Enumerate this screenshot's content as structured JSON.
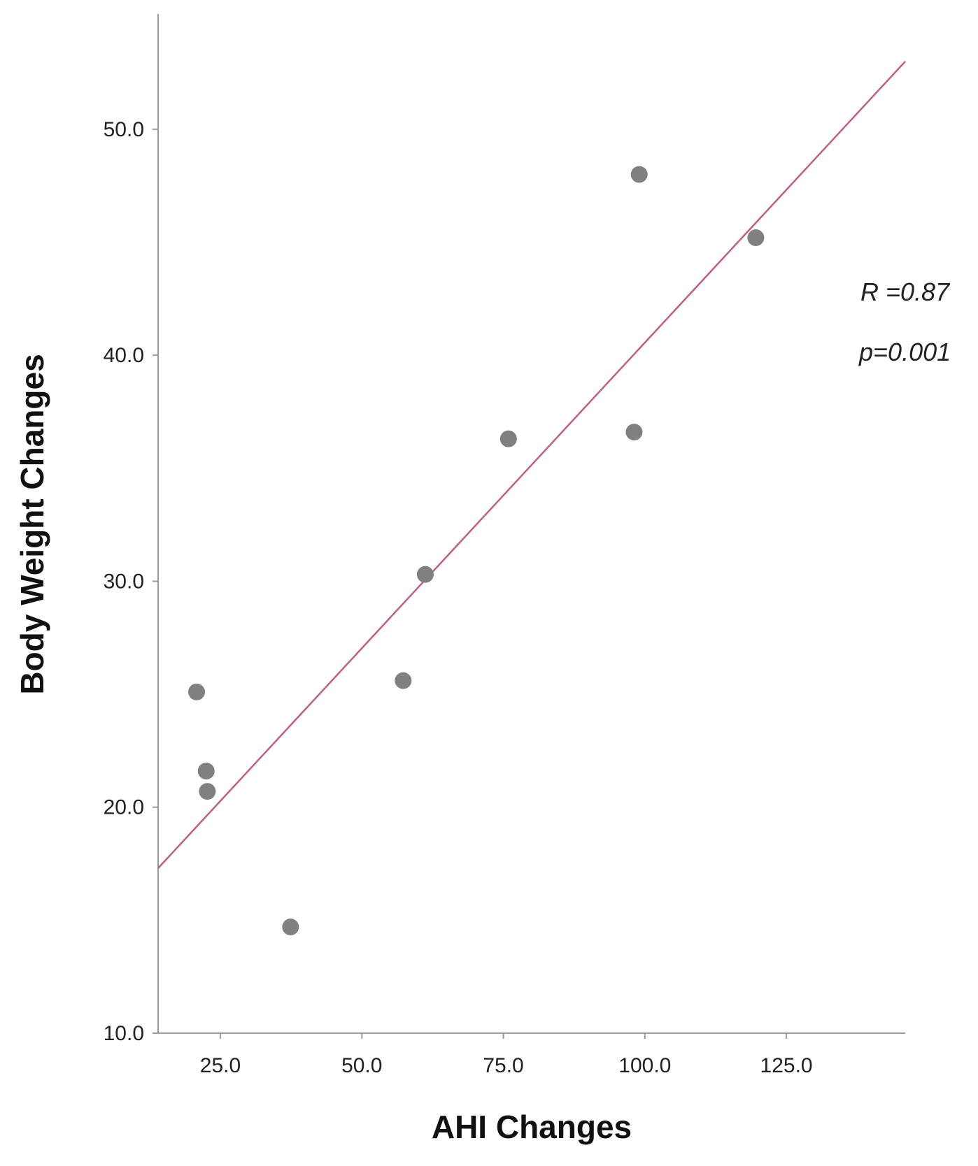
{
  "chart_data": {
    "type": "scatter",
    "title": "",
    "xlabel": "AHI Changes",
    "ylabel": "Body Weight Changes",
    "xlim": [
      14,
      146
    ],
    "ylim": [
      10,
      55.1
    ],
    "x_ticks": [
      25,
      50,
      75,
      100,
      125
    ],
    "x_tick_labels": [
      "25.0",
      "50.0",
      "75.0",
      "100.0",
      "125.0"
    ],
    "y_ticks": [
      10,
      20,
      30,
      40,
      50
    ],
    "y_tick_labels": [
      "10.0",
      "20.0",
      "30.0",
      "40.0",
      "50.0"
    ],
    "grid": false,
    "legend": "none",
    "series": [
      {
        "points": [
          {
            "x": 20.8,
            "y": 25.1
          },
          {
            "x": 22.5,
            "y": 21.6
          },
          {
            "x": 22.7,
            "y": 20.7
          },
          {
            "x": 37.4,
            "y": 14.7
          },
          {
            "x": 57.3,
            "y": 25.6
          },
          {
            "x": 61.2,
            "y": 30.3
          },
          {
            "x": 75.9,
            "y": 36.3
          },
          {
            "x": 98.1,
            "y": 36.6
          },
          {
            "x": 99.0,
            "y": 48.0
          },
          {
            "x": 119.6,
            "y": 45.2
          }
        ],
        "color": "#808080"
      }
    ],
    "fit_line": {
      "x": [
        14,
        146
      ],
      "y": [
        17.3,
        53.0
      ],
      "color": "#c0607a"
    },
    "annotations": [
      "R =0.87",
      "p=0.001"
    ]
  }
}
